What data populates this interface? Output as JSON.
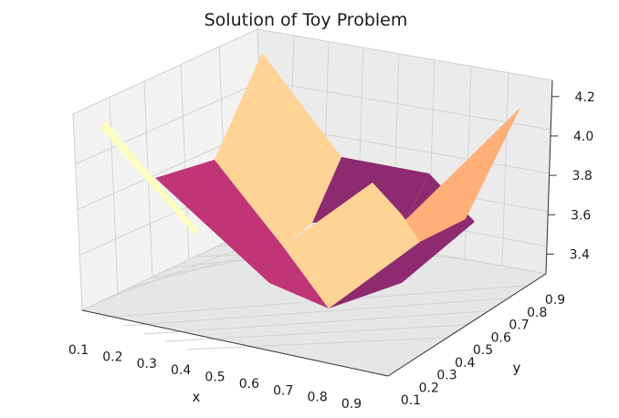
{
  "chart_data": {
    "type": "surface",
    "title": "Solution of Toy Problem",
    "xlabel": "x",
    "ylabel": "y",
    "zlabel": "",
    "colormap": "magma",
    "x_ticks": [
      "0.1",
      "0.2",
      "0.3",
      "0.4",
      "0.5",
      "0.6",
      "0.7",
      "0.8",
      "0.9"
    ],
    "y_ticks": [
      "0.1",
      "0.2",
      "0.3",
      "0.4",
      "0.5",
      "0.6",
      "0.7",
      "0.8",
      "0.9"
    ],
    "z_ticks": [
      "3.4",
      "3.6",
      "3.8",
      "4.0",
      "4.2"
    ],
    "grid": true,
    "colors": {
      "dark": "#8e2a6f",
      "mid": "#bf3577",
      "light": "#fed395",
      "orange": "#feb078",
      "pale": "#fcfdbf",
      "pane": "#f2f2f2",
      "grid": "#d0d0d0"
    }
  }
}
